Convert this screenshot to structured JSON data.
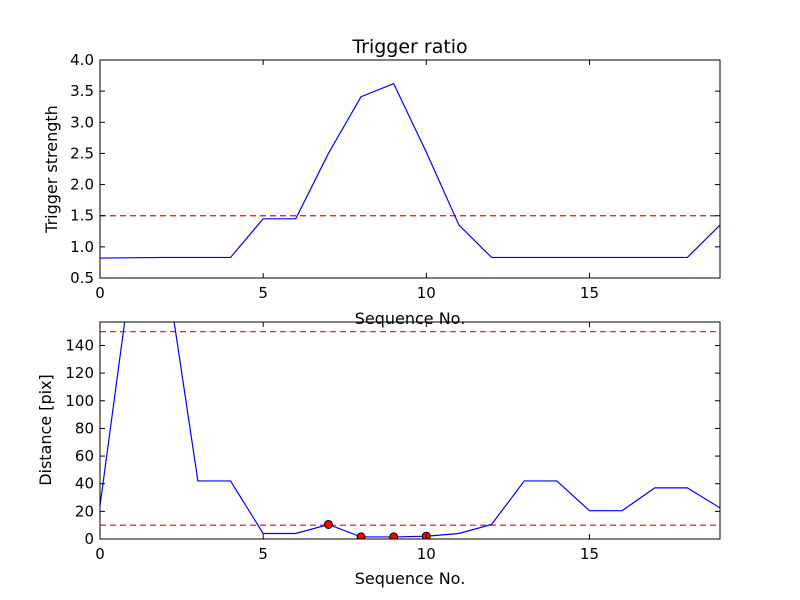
{
  "chart_data": [
    {
      "type": "line",
      "title": "Trigger ratio",
      "xlabel": "Sequence No.",
      "ylabel": "Trigger strength",
      "xlim": [
        0,
        19
      ],
      "ylim": [
        0.5,
        4.0
      ],
      "xticks": [
        0,
        5,
        10,
        15
      ],
      "xtick_labels": [
        "0",
        "5",
        "10",
        "15"
      ],
      "yticks": [
        0.5,
        1.0,
        1.5,
        2.0,
        2.5,
        3.0,
        3.5,
        4.0
      ],
      "ytick_labels": [
        "0.5",
        "1.0",
        "1.5",
        "2.0",
        "2.5",
        "3.0",
        "3.5",
        "4.0"
      ],
      "grid": false,
      "series": [
        {
          "color": "#0000ff",
          "x": [
            0,
            2,
            4,
            5,
            6,
            7,
            8,
            9,
            10,
            11,
            12,
            18,
            19
          ],
          "y": [
            0.82,
            0.83,
            0.83,
            1.45,
            1.45,
            2.5,
            3.41,
            3.62,
            2.52,
            1.35,
            0.83,
            0.83,
            1.35
          ]
        }
      ],
      "thresholds": [
        {
          "y": 1.5,
          "color": "#ff0000",
          "style": "dashed"
        }
      ]
    },
    {
      "type": "line",
      "title": "",
      "xlabel": "Sequence No.",
      "ylabel": "Distance [pix]",
      "xlim": [
        0,
        19
      ],
      "ylim": [
        0,
        157
      ],
      "xticks": [
        0,
        5,
        10,
        15
      ],
      "xtick_labels": [
        "0",
        "5",
        "10",
        "15"
      ],
      "yticks": [
        0,
        20,
        40,
        60,
        80,
        100,
        120,
        140
      ],
      "ytick_labels": [
        "0",
        "20",
        "40",
        "60",
        "80",
        "100",
        "120",
        "140"
      ],
      "grid": false,
      "series": [
        {
          "color": "#0000ff",
          "x": [
            0,
            1,
            2,
            3,
            4,
            5,
            6,
            7,
            8,
            9,
            10,
            11,
            12,
            13,
            14,
            15,
            16,
            17,
            18,
            19
          ],
          "y": [
            24,
            200,
            200,
            42,
            42,
            4,
            4,
            10.5,
            1.5,
            1.5,
            2,
            4,
            10.5,
            42,
            42,
            20.5,
            20.5,
            37,
            37,
            22.5
          ]
        }
      ],
      "markers": {
        "color": "#ff0000",
        "x": [
          7,
          8,
          9,
          10
        ],
        "y": [
          10.5,
          1.5,
          1.5,
          2
        ]
      },
      "thresholds": [
        {
          "y": 150,
          "color": "#ff0000",
          "style": "dashed"
        },
        {
          "y": 10,
          "color": "#ff0000",
          "style": "dashed"
        }
      ]
    }
  ]
}
